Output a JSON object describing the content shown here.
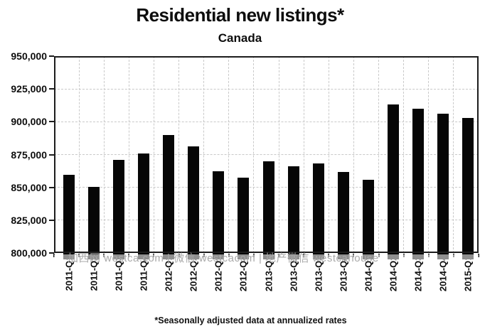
{
  "header": {
    "title": "Residential new listings*",
    "subtitle": "Canada"
  },
  "footnote": "*Seasonally adjusted data at annualized rates",
  "watermark": "加西网 westca.com | 微信 westcacom | 地产微信 westcahouse",
  "colors": {
    "bar": "#060606",
    "axis": "#1c1c1c",
    "gridline": "#c9c9c9",
    "watermark": "#a9a9a9",
    "background": "#ffffff",
    "text": "#0d0d0d"
  },
  "chart_data": {
    "type": "bar",
    "title": "Residential new listings*",
    "subtitle": "Canada",
    "xlabel": "",
    "ylabel": "",
    "categories": [
      "2011-Q1",
      "2011-Q2",
      "2011-Q3",
      "2011-Q4",
      "2012-Q1",
      "2012-Q2",
      "2012-Q3",
      "2012-Q4",
      "2013-Q1",
      "2013-Q2",
      "2013-Q3",
      "2013-Q4",
      "2014-Q1",
      "2014-Q2",
      "2014-Q3",
      "2014-Q4",
      "2015-Q1"
    ],
    "values": [
      859500,
      850500,
      871000,
      876000,
      890000,
      881000,
      862500,
      857500,
      870000,
      866000,
      868000,
      862000,
      856000,
      913000,
      910000,
      906000,
      903000
    ],
    "ylim": [
      800000,
      950000
    ],
    "ytick_interval": 25000,
    "ytick_labels": [
      "950,000",
      "925,000",
      "900,000",
      "875,000",
      "850,000",
      "825,000",
      "800,000"
    ],
    "grid": "horizontal and vertical, dashed",
    "legend_position": "none",
    "annotation": "*Seasonally adjusted data at annualized rates"
  }
}
